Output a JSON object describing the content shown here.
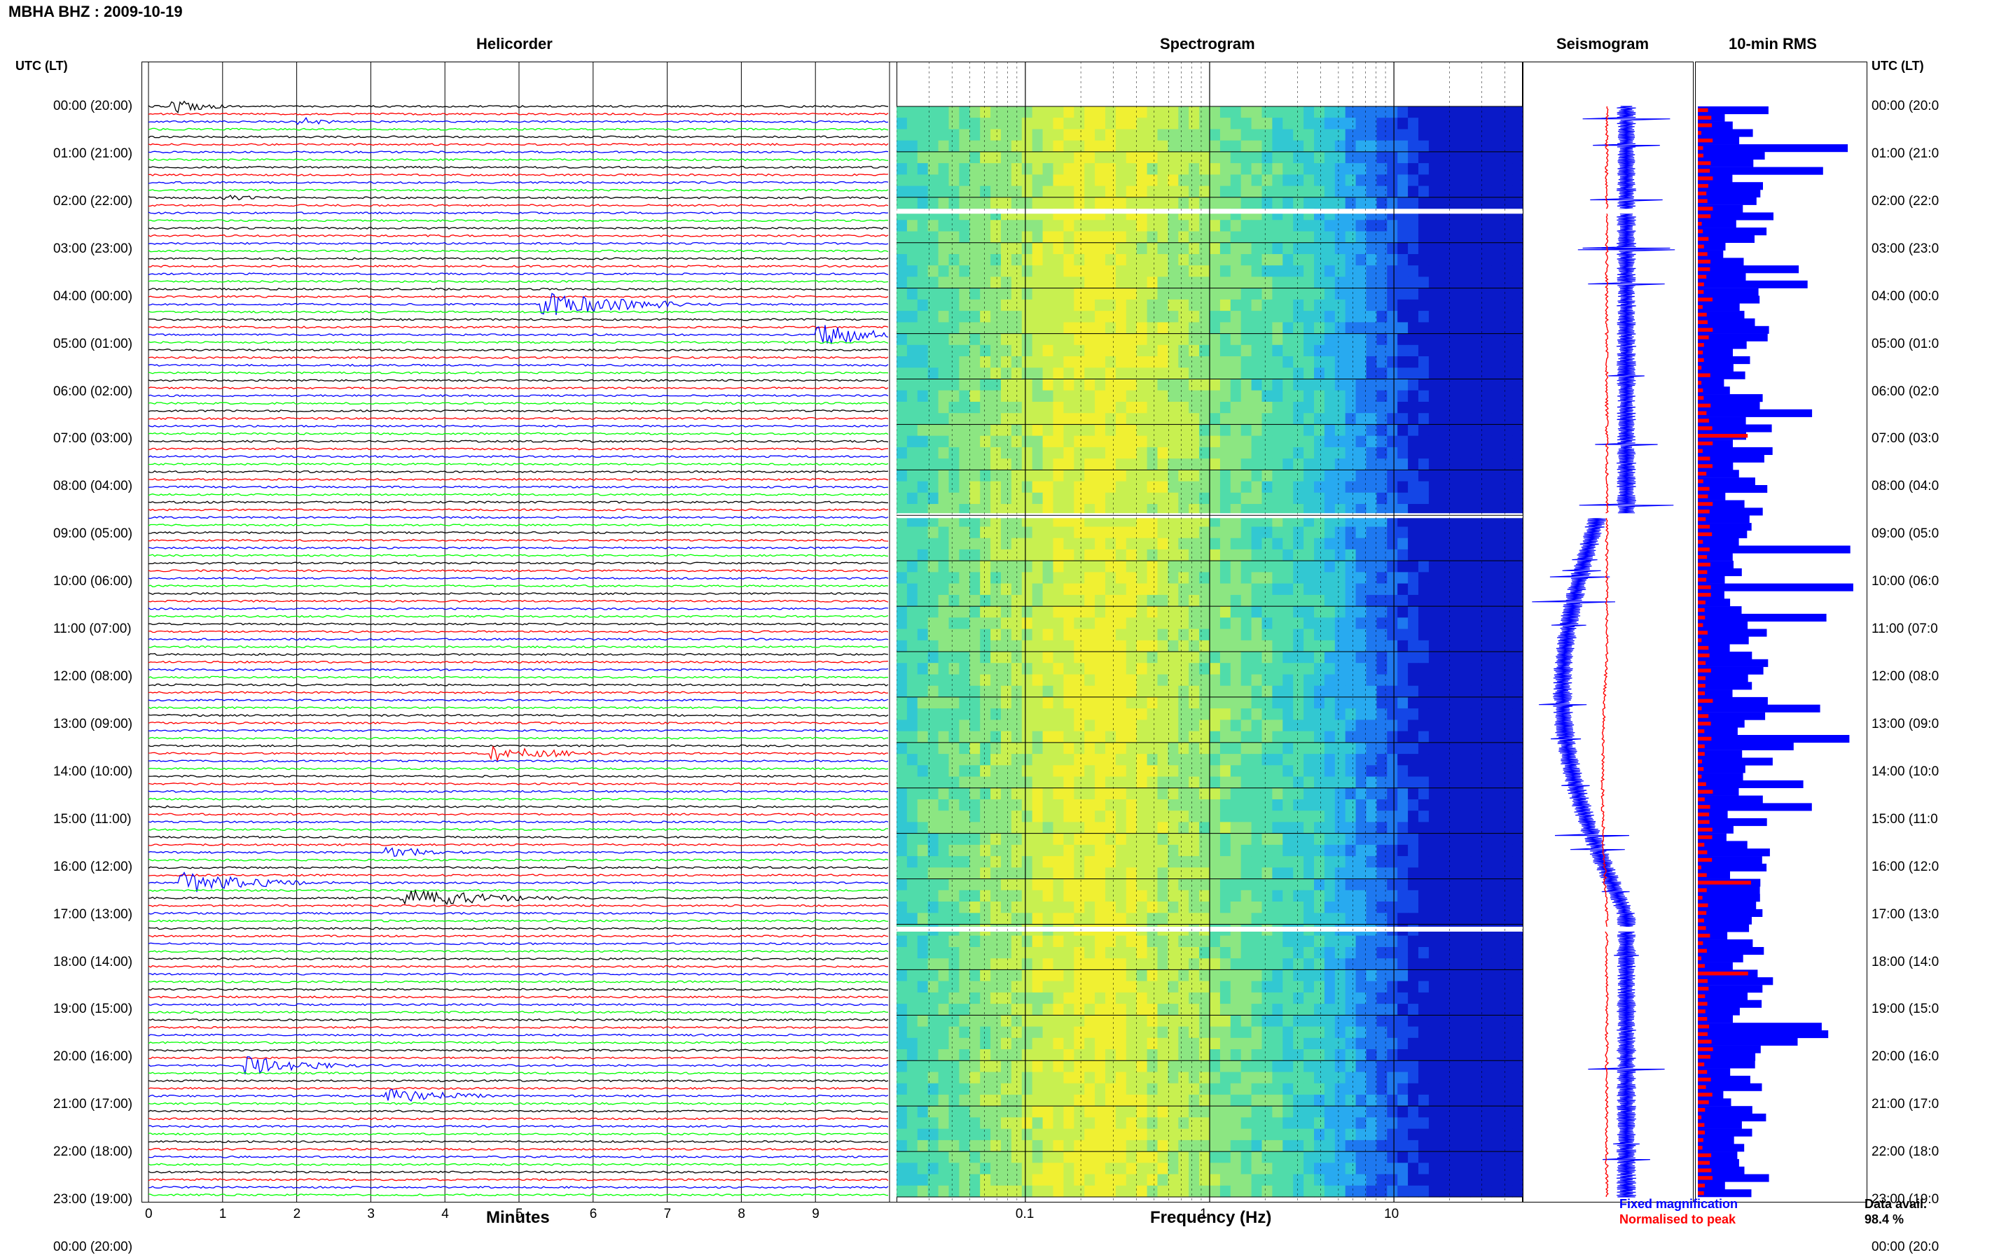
{
  "header": {
    "station_title": "MBHA BHZ : 2009-10-19",
    "utc_lt_label": "UTC (LT)"
  },
  "panels": {
    "helicorder": "Helicorder",
    "spectrogram": "Spectrogram",
    "seismogram": "Seismogram",
    "rms": "10-min RMS"
  },
  "axes": {
    "minutes_label": "Minutes",
    "frequency_label": "Frequency (Hz)",
    "minute_ticks": [
      "0",
      "1",
      "2",
      "3",
      "4",
      "5",
      "6",
      "7",
      "8",
      "9"
    ],
    "freq_ticks": [
      "0.1",
      "1",
      "10"
    ]
  },
  "legend": {
    "fixed": "Fixed magnification",
    "normalised": "Normalised to peak",
    "avail_label": "Data avail.",
    "avail_value": "98.4 %"
  },
  "colors": {
    "trace_cycle": [
      "#000000",
      "#ff0000",
      "#0000ff",
      "#00ff00"
    ],
    "fixed": "#0000ff",
    "normalised": "#ff0000"
  },
  "chart_data": [
    {
      "type": "line",
      "panel": "helicorder",
      "xlabel": "Minutes",
      "xlim": [
        0,
        10
      ],
      "rows": 144,
      "row_span_minutes": 10,
      "time_labels": [
        "00:00 (20:00)",
        "01:00 (21:00)",
        "02:00 (22:00)",
        "03:00 (23:00)",
        "04:00 (00:00)",
        "05:00 (01:00)",
        "06:00 (02:00)",
        "07:00 (03:00)",
        "08:00 (04:00)",
        "09:00 (05:00)",
        "10:00 (06:00)",
        "11:00 (07:00)",
        "12:00 (08:00)",
        "13:00 (09:00)",
        "14:00 (10:00)",
        "15:00 (11:00)",
        "16:00 (12:00)",
        "17:00 (13:00)",
        "18:00 (14:00)",
        "19:00 (15:00)",
        "20:00 (16:00)",
        "21:00 (17:00)",
        "22:00 (18:00)",
        "23:00 (19:00)",
        "00:00 (20:00)"
      ],
      "right_time_labels": [
        "00:00 (20:0",
        "01:00 (21:0",
        "02:00 (22:0",
        "03:00 (23:0",
        "04:00 (00:0",
        "05:00 (01:0",
        "06:00 (02:0",
        "07:00 (03:0",
        "08:00 (04:0",
        "09:00 (05:0",
        "10:00 (06:0",
        "11:00 (07:0",
        "12:00 (08:0",
        "13:00 (09:0",
        "14:00 (10:0",
        "15:00 (11:0",
        "16:00 (12:0",
        "17:00 (13:0",
        "18:00 (14:0",
        "19:00 (15:0",
        "20:00 (16:0",
        "21:00 (17:0",
        "22:00 (18:0",
        "23:00 (19:0",
        "00:00 (20:0"
      ],
      "events": [
        {
          "row": 0,
          "minute": 0.3,
          "amp": 4,
          "dur": 1.0
        },
        {
          "row": 2,
          "minute": 2.0,
          "amp": 2.5,
          "dur": 0.8
        },
        {
          "row": 12,
          "minute": 1.0,
          "amp": 1.5,
          "dur": 1.0
        },
        {
          "row": 26,
          "minute": 5.3,
          "amp": 7,
          "dur": 3.0
        },
        {
          "row": 30,
          "minute": 9.0,
          "amp": 8,
          "dur": 1.5
        },
        {
          "row": 85,
          "minute": 4.6,
          "amp": 5,
          "dur": 2.0
        },
        {
          "row": 98,
          "minute": 3.2,
          "amp": 3,
          "dur": 1.5
        },
        {
          "row": 102,
          "minute": 0.4,
          "amp": 6,
          "dur": 2.5
        },
        {
          "row": 104,
          "minute": 3.4,
          "amp": 5,
          "dur": 3.0
        },
        {
          "row": 126,
          "minute": 1.3,
          "amp": 5,
          "dur": 2.0
        },
        {
          "row": 130,
          "minute": 3.2,
          "amp": 4,
          "dur": 2.0
        }
      ]
    },
    {
      "type": "heatmap",
      "panel": "spectrogram",
      "xlabel": "Frequency (Hz)",
      "xscale": "log",
      "xlim": [
        0.02,
        50
      ],
      "gaps_hours": [
        2.3,
        9.0,
        18.1
      ]
    },
    {
      "type": "line",
      "panel": "seismogram",
      "series": [
        {
          "name": "Fixed magnification",
          "color": "#0000ff"
        },
        {
          "name": "Normalised to peak",
          "color": "#ff0000"
        }
      ],
      "long_period_swing_hours": [
        12.0,
        17.8
      ]
    },
    {
      "type": "bar",
      "panel": "rms",
      "series": [
        {
          "name": "Fixed magnification",
          "color": "#0000ff"
        },
        {
          "name": "Normalised to peak",
          "color": "#ff0000"
        }
      ],
      "bins_minutes": 10
    }
  ]
}
